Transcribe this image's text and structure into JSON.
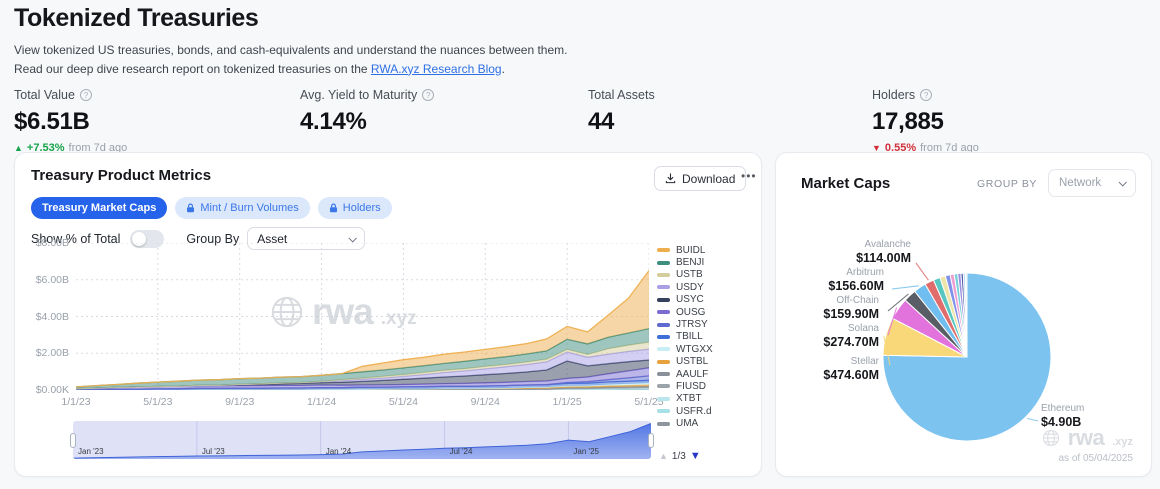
{
  "page": {
    "title": "Tokenized Treasuries",
    "description_1": "View tokenized US treasuries, bonds, and cash-equivalents and understand the nuances between them. Read our deep dive research report on tokenized treasuries on the ",
    "link_text": "RWA.xyz Research Blog",
    "description_2": "."
  },
  "stats": [
    {
      "label": "Total Value",
      "value": "$6.51B",
      "delta": "+7.53%",
      "delta_dir": "up",
      "delta_suffix": "from 7d ago",
      "has_info": true
    },
    {
      "label": "Avg. Yield to Maturity",
      "value": "4.14%",
      "has_info": true
    },
    {
      "label": "Total Assets",
      "value": "44",
      "has_info": false
    },
    {
      "label": "Holders",
      "value": "17,885",
      "delta": "0.55%",
      "delta_dir": "down",
      "delta_suffix": "from 7d ago",
      "has_info": true
    }
  ],
  "left_card": {
    "title": "Treasury Product Metrics",
    "download_label": "Download",
    "more_label": "•••",
    "tabs": [
      {
        "label": "Treasury Market Caps",
        "active": true,
        "locked": false
      },
      {
        "label": "Mint / Burn Volumes",
        "active": false,
        "locked": true
      },
      {
        "label": "Holders",
        "active": false,
        "locked": true
      }
    ],
    "show_pct_label": "Show % of Total",
    "group_by_label": "Group By",
    "group_by_value": "Asset",
    "legend_page": "1/3",
    "watermark_brand": "rwa",
    "watermark_tld": ".xyz"
  },
  "right_card": {
    "title": "Market Caps",
    "group_by_caption": "GROUP BY",
    "group_by_value": "Network",
    "as_of": "as of 05/04/2025",
    "watermark_brand": "rwa",
    "watermark_tld": ".xyz"
  },
  "chart_data": [
    {
      "type": "area",
      "title": "Treasury Product Metrics — Treasury Market Caps (stacked, $B)",
      "x_months": [
        "2023-01",
        "2023-02",
        "2023-03",
        "2023-04",
        "2023-05",
        "2023-06",
        "2023-07",
        "2023-08",
        "2023-09",
        "2023-10",
        "2023-11",
        "2023-12",
        "2024-01",
        "2024-02",
        "2024-03",
        "2024-04",
        "2024-05",
        "2024-06",
        "2024-07",
        "2024-08",
        "2024-09",
        "2024-10",
        "2024-11",
        "2024-12",
        "2025-01",
        "2025-02",
        "2025-03",
        "2025-04",
        "2025-05"
      ],
      "ylim_billions": [
        0,
        8
      ],
      "y_ticks": [
        "$8.00B",
        "$6.00B",
        "$4.00B",
        "$2.00B",
        "$0.00K"
      ],
      "x_ticks": [
        {
          "i": 0,
          "label": "1/1/23"
        },
        {
          "i": 4,
          "label": "5/1/23"
        },
        {
          "i": 8,
          "label": "9/1/23"
        },
        {
          "i": 12,
          "label": "1/1/24"
        },
        {
          "i": 16,
          "label": "5/1/24"
        },
        {
          "i": 20,
          "label": "9/1/24"
        },
        {
          "i": 24,
          "label": "1/1/25"
        },
        {
          "i": 28,
          "label": "5/1/25"
        }
      ],
      "brush_ticks": [
        {
          "i": 0,
          "label": "Jan '23"
        },
        {
          "i": 6,
          "label": "Jul '23"
        },
        {
          "i": 12,
          "label": "Jan '24"
        },
        {
          "i": 18,
          "label": "Jul '24"
        },
        {
          "i": 24,
          "label": "Jan '25"
        }
      ],
      "series": [
        {
          "name": "BUIDL",
          "color": "#EEAE4E",
          "values": [
            0,
            0,
            0,
            0,
            0,
            0,
            0,
            0,
            0,
            0,
            0,
            0,
            0,
            0,
            0.3,
            0.38,
            0.45,
            0.46,
            0.5,
            0.51,
            0.52,
            0.54,
            0.56,
            0.65,
            0.7,
            0.65,
            1.2,
            1.9,
            3.15
          ]
        },
        {
          "name": "BENJI",
          "color": "#3E8E7E",
          "values": [
            0.1,
            0.13,
            0.16,
            0.2,
            0.24,
            0.27,
            0.29,
            0.3,
            0.31,
            0.31,
            0.32,
            0.32,
            0.33,
            0.33,
            0.34,
            0.35,
            0.36,
            0.37,
            0.38,
            0.4,
            0.41,
            0.42,
            0.44,
            0.46,
            0.55,
            0.58,
            0.62,
            0.66,
            0.74
          ]
        },
        {
          "name": "USTB",
          "color": "#D4CD9C",
          "values": [
            0,
            0,
            0,
            0,
            0,
            0,
            0,
            0,
            0,
            0,
            0,
            0,
            0,
            0.05,
            0.07,
            0.09,
            0.1,
            0.11,
            0.12,
            0.12,
            0.13,
            0.13,
            0.14,
            0.14,
            0.15,
            0.15,
            0.3,
            0.34,
            0.38
          ]
        },
        {
          "name": "USDY",
          "color": "#A89FE5",
          "values": [
            0,
            0,
            0,
            0,
            0,
            0,
            0,
            0,
            0.02,
            0.03,
            0.04,
            0.05,
            0.07,
            0.09,
            0.11,
            0.13,
            0.16,
            0.2,
            0.24,
            0.28,
            0.32,
            0.36,
            0.4,
            0.44,
            0.48,
            0.47,
            0.52,
            0.56,
            0.59
          ]
        },
        {
          "name": "USYC",
          "color": "#36415E",
          "values": [
            0,
            0,
            0,
            0,
            0,
            0,
            0.02,
            0.03,
            0.05,
            0.07,
            0.09,
            0.11,
            0.13,
            0.16,
            0.2,
            0.24,
            0.28,
            0.32,
            0.36,
            0.4,
            0.44,
            0.48,
            0.52,
            0.6,
            0.95,
            0.6,
            0.55,
            0.5,
            0.42
          ]
        },
        {
          "name": "OUSG",
          "color": "#7A6CD0",
          "values": [
            0.05,
            0.08,
            0.1,
            0.12,
            0.13,
            0.14,
            0.14,
            0.14,
            0.14,
            0.14,
            0.14,
            0.14,
            0.14,
            0.13,
            0.12,
            0.12,
            0.13,
            0.14,
            0.15,
            0.16,
            0.17,
            0.18,
            0.19,
            0.2,
            0.22,
            0.26,
            0.32,
            0.38,
            0.44
          ]
        },
        {
          "name": "JTRSY",
          "color": "#5E6ACF",
          "values": [
            0,
            0,
            0,
            0,
            0,
            0,
            0,
            0,
            0,
            0,
            0,
            0,
            0,
            0,
            0,
            0,
            0,
            0,
            0,
            0,
            0,
            0,
            0,
            0,
            0.05,
            0.08,
            0.12,
            0.18,
            0.24
          ]
        },
        {
          "name": "TBILL",
          "color": "#3E6FD9",
          "values": [
            0.02,
            0.03,
            0.04,
            0.05,
            0.06,
            0.07,
            0.08,
            0.08,
            0.09,
            0.09,
            0.1,
            0.1,
            0.1,
            0.1,
            0.11,
            0.11,
            0.11,
            0.12,
            0.12,
            0.12,
            0.12,
            0.13,
            0.13,
            0.13,
            0.13,
            0.13,
            0.14,
            0.14,
            0.15
          ]
        },
        {
          "name": "WTGXX",
          "color": "#C7EEF2",
          "values": [
            0,
            0,
            0,
            0,
            0,
            0,
            0,
            0,
            0,
            0,
            0,
            0,
            0,
            0,
            0,
            0,
            0,
            0,
            0,
            0,
            0.01,
            0.02,
            0.03,
            0.04,
            0.05,
            0.06,
            0.08,
            0.1,
            0.11
          ]
        },
        {
          "name": "USTBL",
          "color": "#E8A23D",
          "values": [
            0,
            0,
            0,
            0,
            0,
            0,
            0,
            0,
            0,
            0,
            0,
            0,
            0,
            0,
            0,
            0.01,
            0.02,
            0.02,
            0.03,
            0.03,
            0.04,
            0.04,
            0.05,
            0.05,
            0.06,
            0.06,
            0.07,
            0.07,
            0.08
          ]
        },
        {
          "name": "AAULF",
          "color": "#8A9099",
          "values": [
            0,
            0,
            0,
            0,
            0,
            0,
            0,
            0,
            0,
            0,
            0,
            0,
            0.01,
            0.01,
            0.02,
            0.02,
            0.02,
            0.02,
            0.03,
            0.03,
            0.03,
            0.03,
            0.03,
            0.03,
            0.04,
            0.04,
            0.04,
            0.05,
            0.05
          ]
        },
        {
          "name": "FIUSD",
          "color": "#9BA3AB",
          "values": [
            0,
            0,
            0,
            0,
            0,
            0,
            0,
            0,
            0,
            0,
            0,
            0,
            0,
            0,
            0,
            0,
            0,
            0,
            0,
            0,
            0,
            0,
            0.01,
            0.02,
            0.03,
            0.03,
            0.04,
            0.04,
            0.05
          ]
        },
        {
          "name": "XTBT",
          "color": "#B9E6EC",
          "values": [
            0,
            0,
            0,
            0,
            0,
            0,
            0,
            0,
            0,
            0,
            0,
            0,
            0,
            0,
            0,
            0,
            0,
            0,
            0,
            0,
            0,
            0,
            0,
            0,
            0.02,
            0.02,
            0.03,
            0.03,
            0.04
          ]
        },
        {
          "name": "USFR.d",
          "color": "#A8E0E7",
          "values": [
            0,
            0,
            0,
            0,
            0,
            0,
            0.01,
            0.01,
            0.01,
            0.01,
            0.01,
            0.01,
            0.02,
            0.02,
            0.02,
            0.02,
            0.02,
            0.02,
            0.02,
            0.02,
            0.02,
            0.02,
            0.02,
            0.02,
            0.03,
            0.03,
            0.03,
            0.03,
            0.03
          ]
        },
        {
          "name": "UMA",
          "color": "#8E949C",
          "values": [
            0,
            0,
            0,
            0,
            0,
            0,
            0,
            0,
            0,
            0,
            0,
            0,
            0,
            0,
            0,
            0,
            0,
            0,
            0,
            0,
            0,
            0,
            0,
            0,
            0,
            0,
            0.01,
            0.02,
            0.02
          ]
        }
      ]
    },
    {
      "type": "pie",
      "title": "Market Caps by Network",
      "slices": [
        {
          "name": "Ethereum",
          "value_label": "$4.90B",
          "value_musd": 4900,
          "color": "#7CC3F0"
        },
        {
          "name": "Stellar",
          "value_label": "$474.60M",
          "value_musd": 474.6,
          "color": "#F8D878"
        },
        {
          "name": "Solana",
          "value_label": "$274.70M",
          "value_musd": 274.7,
          "color": "#E273DC"
        },
        {
          "name": "Off-Chain",
          "value_label": "$159.90M",
          "value_musd": 159.9,
          "color": "#595E66"
        },
        {
          "name": "Arbitrum",
          "value_label": "$156.60M",
          "value_musd": 156.6,
          "color": "#70BEEF"
        },
        {
          "name": "Avalanche",
          "value_label": "$114.00M",
          "value_musd": 114.0,
          "color": "#E06C6C"
        }
      ],
      "unlabeled_slices": [
        {
          "value_musd": 85,
          "color": "#58C7C2"
        },
        {
          "value_musd": 70,
          "color": "#EDE5A8"
        },
        {
          "value_musd": 60,
          "color": "#8191E9"
        },
        {
          "value_musd": 50,
          "color": "#EE9ED2"
        },
        {
          "value_musd": 45,
          "color": "#79D2D8"
        },
        {
          "value_musd": 40,
          "color": "#9C8FE0"
        },
        {
          "value_musd": 30,
          "color": "#4E59A8"
        },
        {
          "value_musd": 25,
          "color": "#B7D9F2"
        },
        {
          "value_musd": 20,
          "color": "#D7ECF9"
        }
      ]
    }
  ]
}
